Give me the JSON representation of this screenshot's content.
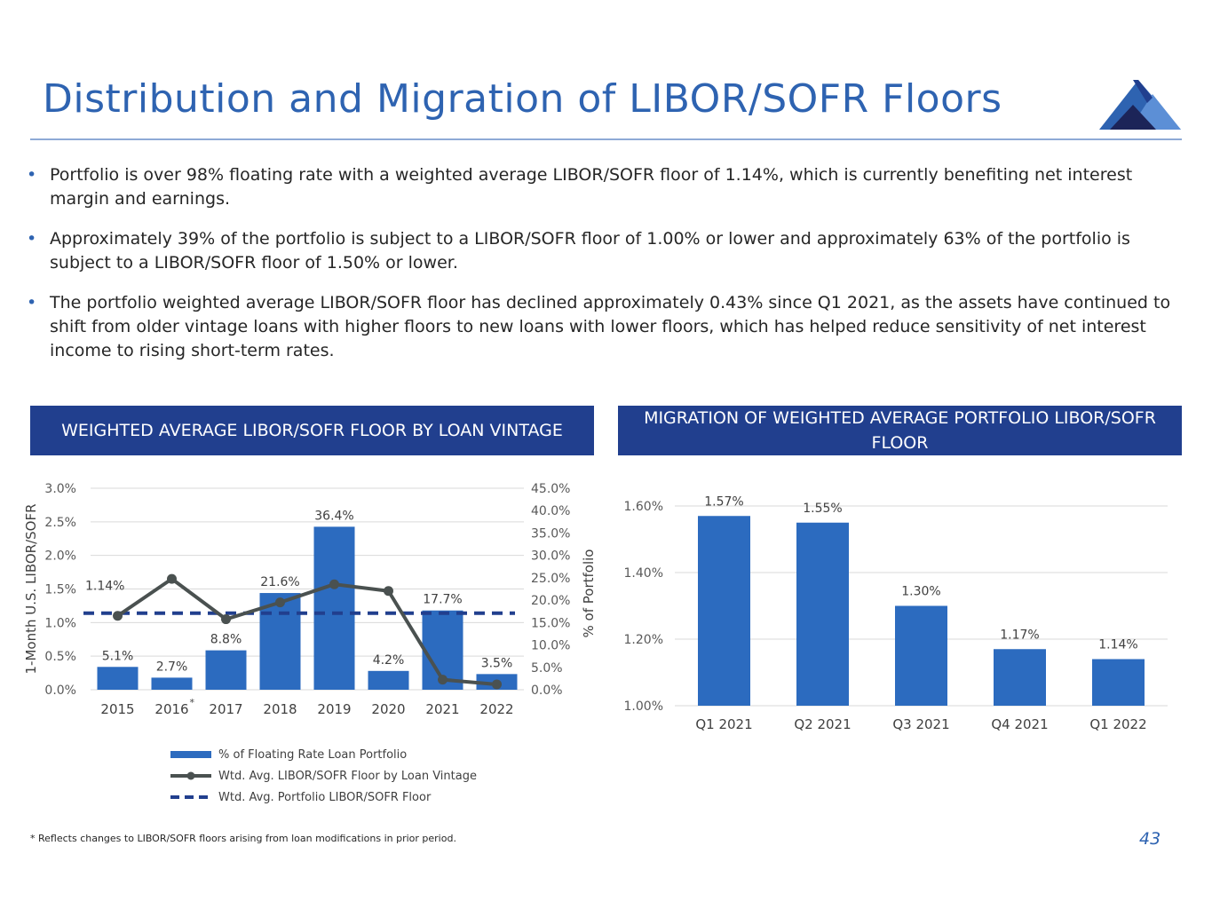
{
  "title": "Distribution and Migration of LIBOR/SOFR Floors",
  "bullets": [
    "Portfolio is over 98% floating rate with a weighted average LIBOR/SOFR floor of 1.14%, which is currently benefiting net interest margin and earnings.",
    "Approximately 39% of the portfolio is subject to a LIBOR/SOFR floor of 1.00% or lower and approximately 63% of the portfolio is subject to a LIBOR/SOFR floor of 1.50% or lower.",
    "The portfolio weighted average LIBOR/SOFR floor has declined approximately 0.43% since Q1 2021, as the assets have continued to shift from older vintage loans with higher floors to new loans with lower floors, which has helped reduce sensitivity of net interest income to rising short-term rates."
  ],
  "left_panel": {
    "header": "WEIGHTED AVERAGE LIBOR/SOFR FLOOR BY LOAN VINTAGE"
  },
  "right_panel": {
    "header": "MIGRATION OF WEIGHTED AVERAGE PORTFOLIO LIBOR/SOFR FLOOR"
  },
  "footnote": "* Reflects changes to LIBOR/SOFR floors arising from loan modifications in prior period.",
  "page_number": "43",
  "colors": {
    "title": "#2E63B1",
    "header_bg": "#213F8E",
    "bar": "#2C6BBF",
    "line": "#4A5150",
    "dashed": "#213F8E"
  },
  "chart_data": [
    {
      "type": "bar",
      "categories": [
        "2015",
        "2016",
        "2017",
        "2018",
        "2019",
        "2020",
        "2021",
        "2022"
      ],
      "category_marks": [
        "",
        "*",
        "",
        "",
        "",
        "",
        "",
        ""
      ],
      "ylabel": "1-Month U.S. LIBOR/SOFR",
      "y2label": "% of Portfolio",
      "ylim": [
        0,
        3.0
      ],
      "y_ticks": [
        "0.0%",
        "0.5%",
        "1.0%",
        "1.5%",
        "2.0%",
        "2.5%",
        "3.0%"
      ],
      "y2lim": [
        0,
        45
      ],
      "y2_ticks": [
        "0.0%",
        "5.0%",
        "10.0%",
        "15.0%",
        "20.0%",
        "25.0%",
        "30.0%",
        "35.0%",
        "40.0%",
        "45.0%"
      ],
      "series": [
        {
          "name": "% of Floating Rate Loan Portfolio",
          "type": "bar",
          "axis": "right",
          "values": [
            5.1,
            2.7,
            8.8,
            21.6,
            36.4,
            4.2,
            17.7,
            3.5
          ],
          "labels": [
            "5.1%",
            "2.7%",
            "8.8%",
            "21.6%",
            "36.4%",
            "4.2%",
            "17.7%",
            "3.5%"
          ]
        },
        {
          "name": "Wtd. Avg. LIBOR/SOFR Floor by Loan Vintage",
          "type": "line",
          "axis": "left",
          "values": [
            1.1,
            1.65,
            1.05,
            1.3,
            1.57,
            1.47,
            0.15,
            0.08
          ]
        },
        {
          "name": "Wtd. Avg. Portfolio LIBOR/SOFR Floor",
          "type": "dashed",
          "axis": "left",
          "value": 1.14,
          "label": "1.14%"
        }
      ],
      "grid": true,
      "legend": "bottom"
    },
    {
      "type": "bar",
      "categories": [
        "Q1 2021",
        "Q2 2021",
        "Q3 2021",
        "Q4 2021",
        "Q1 2022"
      ],
      "values": [
        1.57,
        1.55,
        1.3,
        1.17,
        1.14
      ],
      "labels": [
        "1.57%",
        "1.55%",
        "1.30%",
        "1.17%",
        "1.14%"
      ],
      "ylim": [
        1.0,
        1.6
      ],
      "y_ticks": [
        "1.00%",
        "1.20%",
        "1.40%",
        "1.60%"
      ],
      "grid": true
    }
  ]
}
